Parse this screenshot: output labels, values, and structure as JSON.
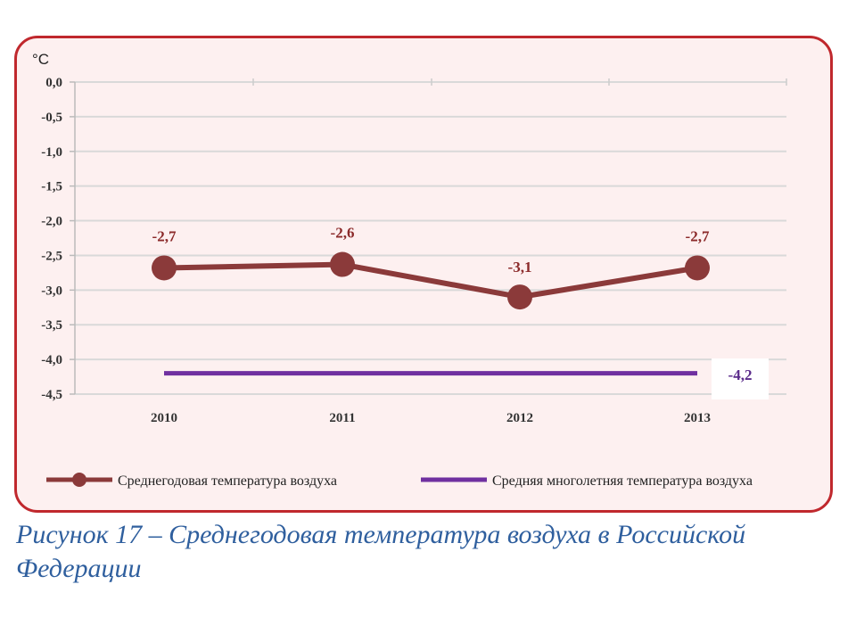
{
  "chart_data": {
    "type": "line",
    "unit_label": "°C",
    "ylim": [
      -4.5,
      0.0
    ],
    "y_ticks": [
      "0,0",
      "-0,5",
      "-1,0",
      "-1,5",
      "-2,0",
      "-2,5",
      "-3,0",
      "-3,5",
      "-4,0",
      "-4,5"
    ],
    "y_tick_values": [
      0.0,
      -0.5,
      -1.0,
      -1.5,
      -2.0,
      -2.5,
      -3.0,
      -3.5,
      -4.0,
      -4.5
    ],
    "categories": [
      "2010",
      "2011",
      "2012",
      "2013"
    ],
    "grid": true,
    "legend_position": "bottom",
    "series": [
      {
        "name": "Среднегодовая  температура воздуха",
        "values": [
          -2.68,
          -2.63,
          -3.1,
          -2.68
        ],
        "data_labels": [
          "-2,7",
          "-2,6",
          "-3,1",
          "-2,7"
        ],
        "color": "#8b3a3a",
        "style": "line-with-markers"
      },
      {
        "name": "Средняя многолетняя температура воздуха",
        "values": [
          -4.2,
          -4.2,
          -4.2,
          -4.2
        ],
        "data_labels": [
          "-4,2"
        ],
        "color": "#7030a0",
        "style": "line"
      }
    ]
  },
  "colors": {
    "frame_border": "#c0282d",
    "frame_fill": "#fdf0f0",
    "caption": "#2f5f9e",
    "gridline": "#d9d9d9"
  },
  "caption": {
    "line1": "Рисунок 17 – Среднегодовая температура воздуха в Российской",
    "line2": "Федерации"
  }
}
